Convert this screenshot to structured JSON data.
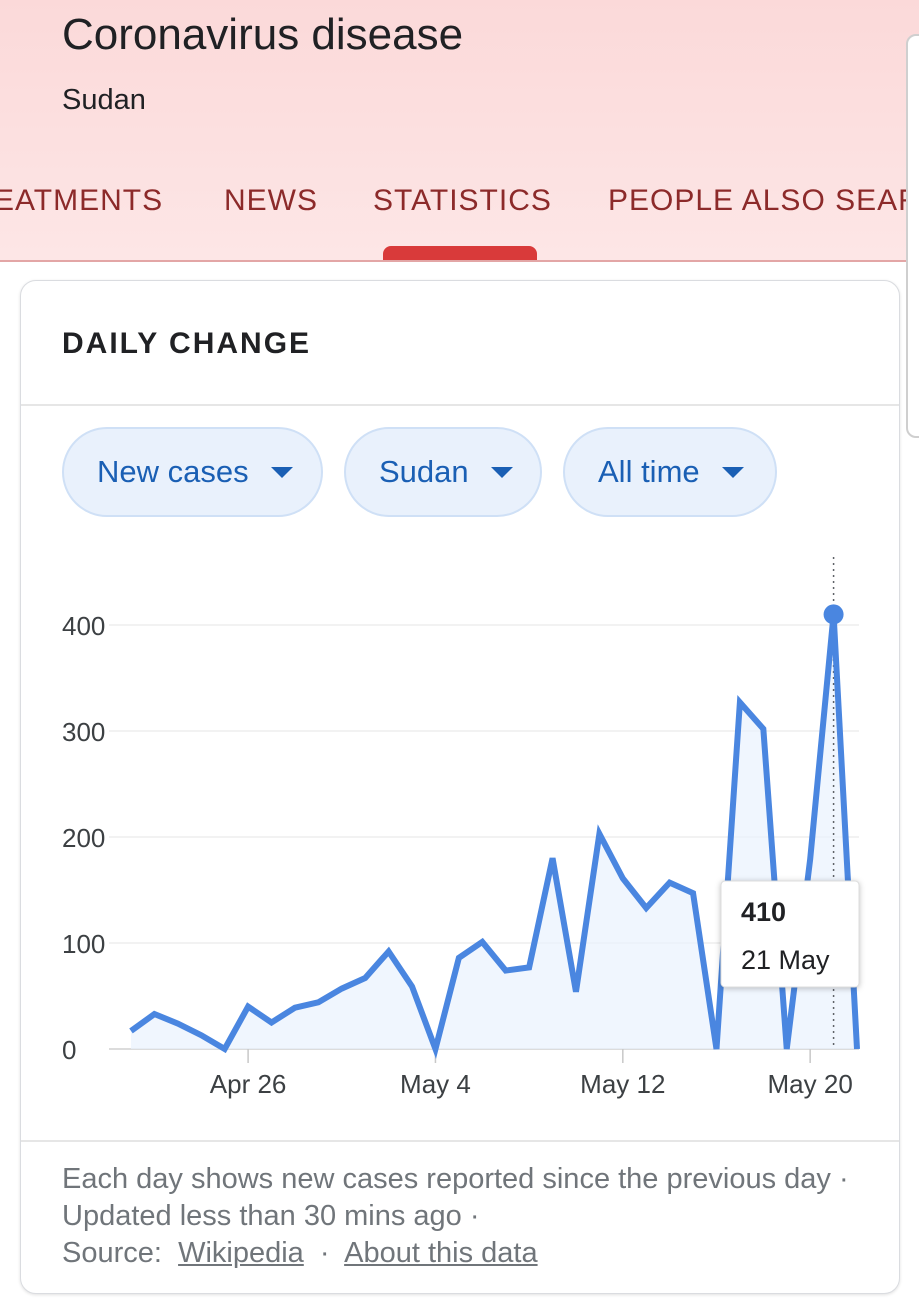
{
  "header": {
    "title": "Coronavirus disease",
    "subtitle": "Sudan",
    "tabs": [
      {
        "label": "EATMENTS"
      },
      {
        "label": "NEWS"
      },
      {
        "label": "STATISTICS",
        "active": true
      },
      {
        "label": "PEOPLE ALSO SEARC"
      }
    ]
  },
  "card": {
    "title": "DAILY CHANGE",
    "filters": [
      {
        "label": "New cases"
      },
      {
        "label": "Sudan"
      },
      {
        "label": "All time"
      }
    ],
    "footnote": {
      "text": "Each day shows new cases reported since the previous day · Updated less than 30 mins ago ·",
      "source_label": "Source:",
      "source_link": "Wikipedia",
      "separator": "·",
      "about_link": "About this data"
    }
  },
  "colors": {
    "header_bg": "#fde3e3",
    "tab_text": "#8c2a2a",
    "tab_indicator": "#d93a3a",
    "chip_bg": "#e9f1fc",
    "chip_text": "#1a5fb4",
    "line": "#4a86e0"
  },
  "chart_data": {
    "type": "line",
    "y_ticks": [
      "0",
      "100",
      "200",
      "300",
      "400"
    ],
    "ylim": [
      0,
      400
    ],
    "x_tick_labels": [
      "Apr 26",
      "May 4",
      "May 12",
      "May 20"
    ],
    "x_tick_dates": [
      "2020-04-26",
      "2020-05-04",
      "2020-05-12",
      "2020-05-20"
    ],
    "grid": true,
    "series": [
      {
        "x": [
          "2020-04-21",
          "2020-04-22",
          "2020-04-23",
          "2020-04-24",
          "2020-04-25",
          "2020-04-26",
          "2020-04-27",
          "2020-04-28",
          "2020-04-29",
          "2020-04-30",
          "2020-05-01",
          "2020-05-02",
          "2020-05-03",
          "2020-05-04",
          "2020-05-05",
          "2020-05-06",
          "2020-05-07",
          "2020-05-08",
          "2020-05-09",
          "2020-05-10",
          "2020-05-11",
          "2020-05-12",
          "2020-05-13",
          "2020-05-14",
          "2020-05-15",
          "2020-05-16",
          "2020-05-17",
          "2020-05-18",
          "2020-05-19",
          "2020-05-20",
          "2020-05-21",
          "2020-05-22"
        ],
        "values": [
          17,
          33,
          24,
          13,
          0,
          40,
          25,
          39,
          44,
          57,
          67,
          92,
          59,
          0,
          86,
          101,
          74,
          77,
          180,
          54,
          203,
          161,
          133,
          157,
          147,
          0,
          327,
          302,
          0,
          179,
          410,
          0
        ]
      }
    ],
    "tooltip": {
      "value": "410",
      "date": "21 May"
    }
  }
}
